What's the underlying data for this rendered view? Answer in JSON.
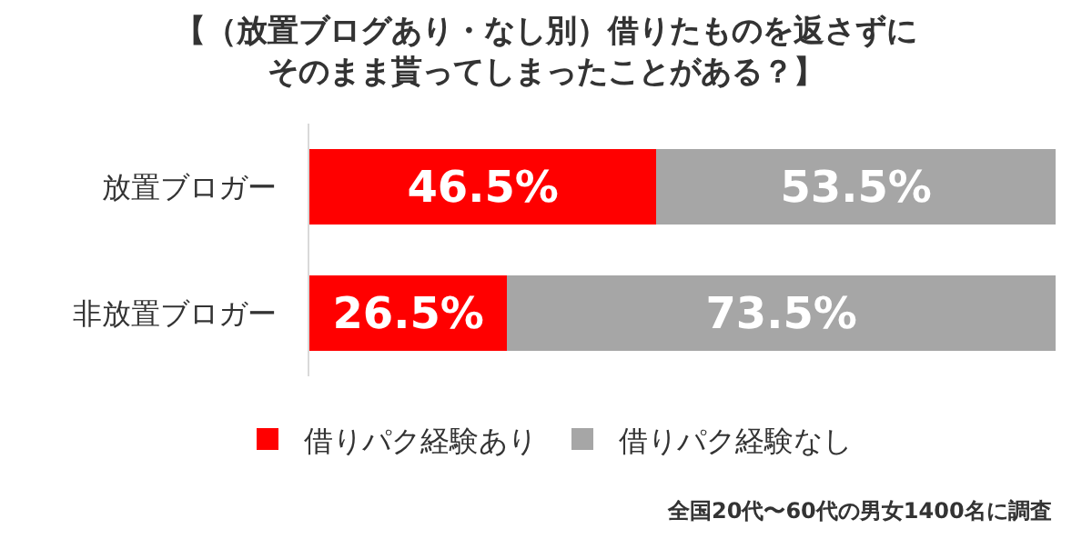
{
  "chart_data": {
    "type": "bar",
    "orientation": "horizontal",
    "stacked": true,
    "title": "【（放置ブログあり・なし別）借りたものを返さずにそのまま貰ってしまったことがある？】",
    "categories": [
      "放置ブロガー",
      "非放置ブロガー"
    ],
    "series": [
      {
        "name": "借りパク経験あり",
        "color": "#ff0000",
        "values": [
          46.5,
          26.5
        ],
        "value_labels": [
          "46.5%",
          "26.5%"
        ]
      },
      {
        "name": "借りパク経験なし",
        "color": "#a6a6a6",
        "values": [
          53.5,
          73.5
        ],
        "value_labels": [
          "53.5%",
          "73.5%"
        ]
      }
    ],
    "xlim": [
      0,
      100
    ],
    "tick_labels": "y",
    "legend": "bottom",
    "annotations": [
      "全国20代〜60代の男女1400名に調査"
    ]
  }
}
